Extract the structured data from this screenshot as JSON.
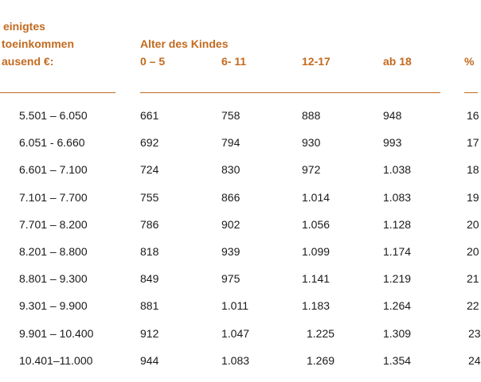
{
  "header": {
    "income_lines": [
      "einigtes",
      "toeinkommen",
      "ausend €:"
    ],
    "age_group_title": "Alter des Kindes",
    "columns": [
      "0 – 5",
      "6- 11",
      "12-17",
      "ab 18",
      "%"
    ]
  },
  "rows": [
    {
      "income": "5.501 – 6.050",
      "values": [
        "661",
        "758",
        "888",
        "948",
        "16"
      ]
    },
    {
      "income": "6.051 - 6.660",
      "values": [
        "692",
        "794",
        "930",
        "993",
        "17"
      ]
    },
    {
      "income": "6.601 – 7.100",
      "values": [
        "724",
        "830",
        "972",
        "1.038",
        "18"
      ]
    },
    {
      "income": "7.101 – 7.700",
      "values": [
        "755",
        "866",
        "1.014",
        "1.083",
        "19"
      ]
    },
    {
      "income": "7.701 – 8.200",
      "values": [
        "786",
        "902",
        "1.056",
        "1.128",
        "20"
      ]
    },
    {
      "income": "8.201 – 8.800",
      "values": [
        "818",
        "939",
        "1.099",
        "1.174",
        "20"
      ]
    },
    {
      "income": "8.801 – 9.300",
      "values": [
        "849",
        "975",
        "1.141",
        "1.219",
        "21"
      ]
    },
    {
      "income": "9.301 – 9.900",
      "values": [
        "881",
        "1.011",
        "1.183",
        "1.264",
        "22"
      ]
    },
    {
      "income": "9.901 – 10.400",
      "values": [
        "912",
        "1.047",
        "1.225",
        "1.309",
        "23"
      ]
    },
    {
      "income": "10.401–11.000",
      "values": [
        "944",
        "1.083",
        "1.269",
        "1.354",
        "24"
      ]
    }
  ]
}
